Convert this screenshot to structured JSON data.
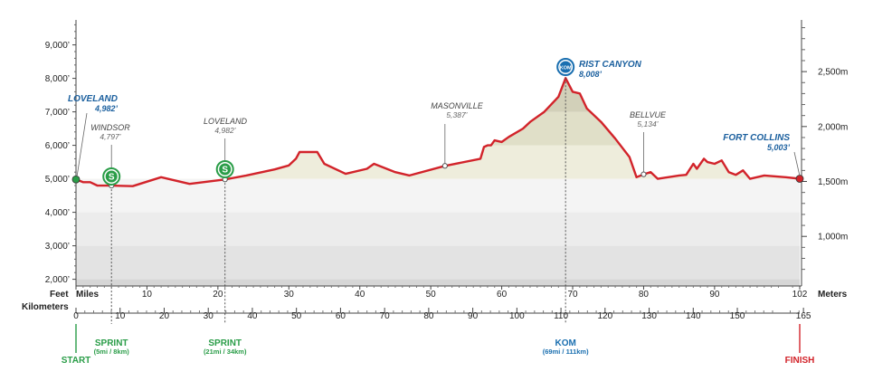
{
  "chart_data": {
    "type": "area",
    "units": {
      "left": "Feet",
      "miles": "Miles",
      "kilometers": "Kilometers",
      "right": "Meters"
    },
    "y_feet_ticks": [
      "2,000’",
      "3,000’",
      "4,000’",
      "5,000’",
      "6,000’",
      "7,000’",
      "8,000’",
      "9,000’"
    ],
    "y_feet_values": [
      2000,
      3000,
      4000,
      5000,
      6000,
      7000,
      8000,
      9000
    ],
    "y_meters_ticks": [
      "1,000m",
      "1,500m",
      "2,000m",
      "2,500m"
    ],
    "y_meters_values": [
      1000,
      1500,
      2000,
      2500
    ],
    "mile_ticks": [
      "0",
      "10",
      "20",
      "30",
      "40",
      "50",
      "60",
      "70",
      "80",
      "90",
      "102"
    ],
    "mile_values": [
      0,
      10,
      20,
      30,
      40,
      50,
      60,
      70,
      80,
      90,
      102
    ],
    "km_ticks": [
      "0",
      "10",
      "20",
      "30",
      "40",
      "50",
      "60",
      "70",
      "80",
      "90",
      "100",
      "110",
      "120",
      "130",
      "140",
      "150",
      "165"
    ],
    "km_values": [
      0,
      10,
      20,
      30,
      40,
      50,
      60,
      70,
      80,
      90,
      100,
      110,
      120,
      130,
      140,
      150,
      165
    ],
    "xlim_miles": [
      0,
      102
    ],
    "ylim_feet": [
      1800,
      9800
    ],
    "profile": [
      [
        0,
        4982
      ],
      [
        1,
        4900
      ],
      [
        2,
        4900
      ],
      [
        3,
        4800
      ],
      [
        5,
        4797
      ],
      [
        8,
        4780
      ],
      [
        9,
        4850
      ],
      [
        12,
        5050
      ],
      [
        16,
        4850
      ],
      [
        21,
        4982
      ],
      [
        24,
        5100
      ],
      [
        28,
        5280
      ],
      [
        30,
        5400
      ],
      [
        31,
        5600
      ],
      [
        31.5,
        5800
      ],
      [
        34,
        5800
      ],
      [
        35,
        5450
      ],
      [
        38,
        5150
      ],
      [
        41,
        5300
      ],
      [
        42,
        5450
      ],
      [
        45,
        5200
      ],
      [
        47,
        5100
      ],
      [
        52,
        5387
      ],
      [
        57,
        5600
      ],
      [
        57.5,
        5950
      ],
      [
        58,
        6000
      ],
      [
        58.5,
        6000
      ],
      [
        59,
        6150
      ],
      [
        60,
        6100
      ],
      [
        61,
        6250
      ],
      [
        63,
        6500
      ],
      [
        64,
        6700
      ],
      [
        66,
        7000
      ],
      [
        68,
        7450
      ],
      [
        69,
        8008
      ],
      [
        70,
        7600
      ],
      [
        71,
        7550
      ],
      [
        72,
        7100
      ],
      [
        74,
        6700
      ],
      [
        76,
        6200
      ],
      [
        78,
        5650
      ],
      [
        79,
        5050
      ],
      [
        80,
        5134
      ],
      [
        81,
        5200
      ],
      [
        82,
        5000
      ],
      [
        85,
        5100
      ],
      [
        86,
        5120
      ],
      [
        87,
        5450
      ],
      [
        87.5,
        5300
      ],
      [
        88.5,
        5600
      ],
      [
        89,
        5500
      ],
      [
        90,
        5450
      ],
      [
        91,
        5550
      ],
      [
        92,
        5200
      ],
      [
        93,
        5120
      ],
      [
        94,
        5250
      ],
      [
        95,
        5000
      ],
      [
        97,
        5100
      ],
      [
        100,
        5050
      ],
      [
        102,
        5003
      ]
    ],
    "places": [
      {
        "name": "Windsor",
        "label": "WINDSOR",
        "elev": "4,797’",
        "mile": 5,
        "feet": 4797,
        "highlight": false
      },
      {
        "name": "Loveland",
        "label": "LOVELAND",
        "elev": "4,982’",
        "mile": 21,
        "feet": 4982,
        "highlight": false
      },
      {
        "name": "Masonville",
        "label": "MASONVILLE",
        "elev": "5,387’",
        "mile": 52,
        "feet": 5387,
        "highlight": false
      },
      {
        "name": "Bellvue",
        "label": "BELLVUE",
        "elev": "5,134’",
        "mile": 80,
        "feet": 5134,
        "highlight": false
      },
      {
        "name": "Loveland",
        "label": "LOVELAND",
        "elev": "4,982’",
        "mile": 0,
        "feet": 4982,
        "highlight": true
      },
      {
        "name": "Rist Canyon",
        "label": "RIST CANYON",
        "elev": "8,008’",
        "mile": 69,
        "feet": 8008,
        "highlight": true
      },
      {
        "name": "Fort Collins",
        "label": "FORT COLLINS",
        "elev": "5,003’",
        "mile": 102,
        "feet": 5003,
        "highlight": true
      }
    ],
    "markers": [
      {
        "kind": "start",
        "label": "START",
        "mile": 0,
        "color": "#2a9d48"
      },
      {
        "kind": "sprint",
        "label": "SPRINT",
        "sub": "(5mi / 8km)",
        "mile": 5,
        "icon": "S",
        "color": "#2a9d48"
      },
      {
        "kind": "sprint",
        "label": "SPRINT",
        "sub": "(21mi / 34km)",
        "mile": 21,
        "icon": "S",
        "color": "#2a9d48"
      },
      {
        "kind": "kom",
        "label": "KOM",
        "sub": "(69mi / 111km)",
        "mile": 69,
        "icon": "KOM",
        "color": "#1a6fb0"
      },
      {
        "kind": "finish",
        "label": "FINISH",
        "mile": 102,
        "color": "#d2232a"
      }
    ],
    "colors": {
      "line": "#d2232a",
      "highlight": "#1a5f9e",
      "sprint": "#2a9d48",
      "kom": "#1a6fb0",
      "finish": "#d2232a"
    }
  }
}
